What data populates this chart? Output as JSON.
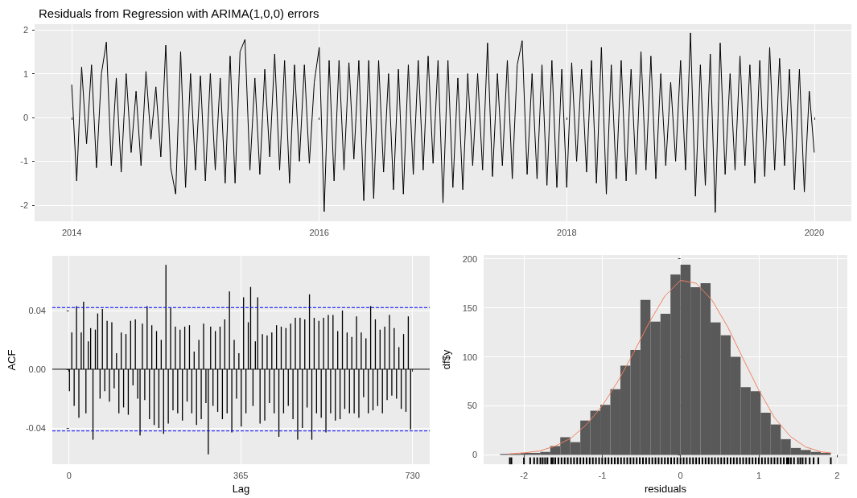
{
  "chart_data": [
    {
      "type": "line",
      "title": "Residuals from Regression with ARIMA(1,0,0) errors",
      "color": "#000000",
      "line_style": "solid",
      "grid": true,
      "x": [
        2014,
        2014.04,
        2014.08,
        2014.12,
        2014.16,
        2014.2,
        2014.24,
        2014.28,
        2014.32,
        2014.36,
        2014.4,
        2014.44,
        2014.48,
        2014.52,
        2014.56,
        2014.6,
        2014.64,
        2014.68,
        2014.72,
        2014.76,
        2014.8,
        2014.84,
        2014.88,
        2014.92,
        2014.96,
        2015,
        2015.04,
        2015.08,
        2015.12,
        2015.16,
        2015.2,
        2015.24,
        2015.28,
        2015.32,
        2015.36,
        2015.4,
        2015.44,
        2015.48,
        2015.52,
        2015.56,
        2015.6,
        2015.64,
        2015.68,
        2015.72,
        2015.76,
        2015.8,
        2015.84,
        2015.88,
        2015.92,
        2015.96,
        2016,
        2016.04,
        2016.08,
        2016.12,
        2016.16,
        2016.2,
        2016.24,
        2016.28,
        2016.32,
        2016.36,
        2016.4,
        2016.44,
        2016.48,
        2016.52,
        2016.56,
        2016.6,
        2016.64,
        2016.68,
        2016.72,
        2016.76,
        2016.8,
        2016.84,
        2016.88,
        2016.92,
        2016.96,
        2017,
        2017.04,
        2017.08,
        2017.12,
        2017.16,
        2017.2,
        2017.24,
        2017.28,
        2017.32,
        2017.36,
        2017.4,
        2017.44,
        2017.48,
        2017.52,
        2017.56,
        2017.6,
        2017.64,
        2017.68,
        2017.72,
        2017.76,
        2017.8,
        2017.84,
        2017.88,
        2017.92,
        2017.96,
        2018,
        2018.04,
        2018.08,
        2018.12,
        2018.16,
        2018.2,
        2018.24,
        2018.28,
        2018.32,
        2018.36,
        2018.4,
        2018.44,
        2018.48,
        2018.52,
        2018.56,
        2018.6,
        2018.64,
        2018.68,
        2018.72,
        2018.76,
        2018.8,
        2018.84,
        2018.88,
        2018.92,
        2018.96,
        2019,
        2019.04,
        2019.08,
        2019.12,
        2019.16,
        2019.2,
        2019.24,
        2019.28,
        2019.32,
        2019.36,
        2019.4,
        2019.44,
        2019.48,
        2019.52,
        2019.56,
        2019.6,
        2019.64,
        2019.68,
        2019.72,
        2019.76,
        2019.8,
        2019.84,
        2019.88,
        2019.92,
        2019.96,
        2020
      ],
      "values": [
        0.75,
        -1.45,
        1.15,
        -0.6,
        1.2,
        -1.15,
        1.0,
        1.72,
        -1.1,
        0.9,
        -1.25,
        1.0,
        -0.8,
        0.6,
        -1.1,
        1.05,
        -0.5,
        0.7,
        -0.9,
        1.65,
        -1.15,
        -1.75,
        1.5,
        -1.6,
        1.0,
        -1.2,
        0.95,
        -1.45,
        1.0,
        -1.2,
        0.9,
        -1.5,
        1.4,
        -1.5,
        1.5,
        1.78,
        -1.2,
        0.9,
        -1.3,
        1.1,
        -0.9,
        1.45,
        -1.2,
        1.3,
        -1.5,
        1.2,
        -1.0,
        1.2,
        -1.05,
        0.8,
        1.6,
        -2.15,
        1.3,
        -1.45,
        1.3,
        -1.2,
        1.25,
        -0.95,
        1.3,
        -1.9,
        1.3,
        -1.85,
        1.3,
        -1.25,
        1.0,
        -1.65,
        1.1,
        -1.75,
        1.2,
        -1.3,
        1.3,
        -1.2,
        1.4,
        -1.05,
        1.3,
        -1.95,
        1.3,
        -1.6,
        0.9,
        -1.65,
        1.0,
        -1.1,
        1.0,
        -1.2,
        1.7,
        -1.35,
        1.0,
        -1.1,
        1.3,
        -1.4,
        1.2,
        1.75,
        -1.3,
        1.0,
        -1.4,
        1.2,
        -1.55,
        1.3,
        -1.6,
        1.1,
        -1.6,
        1.25,
        -1.0,
        1.1,
        -1.25,
        1.3,
        -1.5,
        1.6,
        -1.75,
        1.2,
        -1.4,
        1.3,
        -1.45,
        1.1,
        -1.3,
        1.5,
        -1.2,
        1.4,
        -1.4,
        1.0,
        -1.1,
        0.8,
        -1.0,
        1.3,
        -1.2,
        1.93,
        -1.8,
        1.2,
        -1.55,
        1.45,
        -2.17,
        1.7,
        -1.3,
        1.0,
        -1.2,
        1.4,
        -1.1,
        1.2,
        -1.5,
        1.3,
        -1.35,
        1.6,
        -1.2,
        1.35,
        -1.1,
        1.1,
        -1.65,
        1.1,
        -1.7,
        0.6,
        -0.8
      ],
      "xlim": [
        2013.7,
        2020.3
      ],
      "xticks": [
        2014,
        2016,
        2018,
        2020
      ],
      "ylim": [
        -2.37,
        2.13
      ],
      "yticks": [
        -2,
        -1,
        0,
        1,
        2
      ]
    },
    {
      "type": "bar",
      "xlabel": "Lag",
      "ylabel": "ACF",
      "color": "#000000",
      "grid": true,
      "x": [
        1,
        6,
        11,
        16,
        21,
        26,
        31,
        36,
        41,
        46,
        51,
        56,
        61,
        66,
        71,
        76,
        81,
        86,
        91,
        96,
        101,
        106,
        111,
        116,
        121,
        126,
        131,
        136,
        141,
        146,
        151,
        156,
        161,
        166,
        171,
        176,
        181,
        186,
        191,
        196,
        201,
        206,
        211,
        216,
        221,
        226,
        231,
        236,
        241,
        246,
        251,
        256,
        261,
        266,
        271,
        276,
        281,
        286,
        291,
        296,
        301,
        306,
        311,
        316,
        321,
        326,
        331,
        336,
        341,
        346,
        351,
        356,
        361,
        366,
        371,
        376,
        381,
        386,
        391,
        396,
        401,
        406,
        411,
        416,
        421,
        426,
        431,
        436,
        441,
        446,
        451,
        456,
        461,
        466,
        471,
        476,
        481,
        486,
        491,
        496,
        501,
        506,
        511,
        516,
        521,
        526,
        531,
        536,
        541,
        546,
        551,
        556,
        561,
        566,
        571,
        576,
        581,
        586,
        591,
        596,
        601,
        606,
        611,
        616,
        621,
        626,
        631,
        636,
        641,
        646,
        651,
        656,
        661,
        666,
        671,
        676,
        681,
        686,
        691,
        696,
        701,
        706,
        711,
        716,
        721,
        726
      ],
      "values": [
        -0.015,
        0.025,
        -0.025,
        0.043,
        -0.033,
        0.025,
        0.046,
        -0.03,
        0.019,
        0.028,
        -0.048,
        0.027,
        0.038,
        -0.02,
        0.041,
        -0.015,
        0.033,
        -0.022,
        0.032,
        -0.013,
        0.011,
        -0.03,
        0.025,
        -0.026,
        0.024,
        -0.031,
        0.033,
        -0.011,
        0.034,
        -0.02,
        -0.045,
        0.031,
        -0.021,
        0.043,
        -0.034,
        0.03,
        -0.038,
        0.026,
        -0.04,
        0.02,
        -0.044,
        0.071,
        -0.037,
        0.042,
        -0.028,
        0.029,
        -0.03,
        0.027,
        -0.035,
        0.029,
        -0.022,
        0.03,
        -0.03,
        0.012,
        -0.038,
        0.02,
        -0.034,
        0.031,
        -0.023,
        -0.058,
        0.029,
        -0.025,
        0.026,
        -0.029,
        0.029,
        -0.034,
        0.034,
        -0.03,
        0.053,
        -0.043,
        0.02,
        -0.02,
        0.011,
        -0.039,
        0.049,
        -0.03,
        0.032,
        0.056,
        -0.025,
        0.019,
        0.049,
        -0.037,
        0.024,
        -0.035,
        0.023,
        -0.023,
        0.025,
        -0.03,
        0.03,
        -0.046,
        0.029,
        -0.03,
        0.028,
        -0.025,
        0.031,
        -0.034,
        0.035,
        -0.048,
        0.035,
        -0.04,
        0.034,
        -0.026,
        0.051,
        -0.048,
        0.035,
        -0.03,
        0.033,
        -0.033,
        0.035,
        -0.043,
        0.037,
        -0.03,
        0.037,
        -0.035,
        0.026,
        -0.034,
        0.04,
        -0.027,
        0.025,
        -0.03,
        0.022,
        -0.03,
        0.036,
        -0.033,
        0.025,
        -0.019,
        0.021,
        -0.03,
        0.043,
        -0.028,
        0.034,
        -0.025,
        0.027,
        -0.03,
        0.029,
        -0.021,
        0.037,
        -0.018,
        0.028,
        -0.02,
        0.015,
        -0.027,
        0.024,
        -0.029,
        0.036,
        -0.041
      ],
      "xlim": [
        -35.5,
        766.5
      ],
      "xticks": [
        0,
        365,
        730
      ],
      "ylim": [
        -0.0647,
        0.0772
      ],
      "yticks": [
        {
          "value": -0.04,
          "label": "-0.04"
        },
        {
          "value": 0,
          "label": "0.00"
        },
        {
          "value": 0.04,
          "label": "0.04"
        }
      ],
      "ref_lines": [
        {
          "axis": "y",
          "value": 0.042,
          "color": "#0000ff",
          "line_style": "dashed"
        },
        {
          "axis": "y",
          "value": -0.042,
          "color": "#0000ff",
          "line_style": "dashed"
        },
        {
          "axis": "y",
          "value": 0,
          "color": "#000000",
          "line_style": "solid"
        }
      ]
    },
    {
      "type": "histogram",
      "xlabel": "residuals",
      "ylabel": "df$y",
      "color": "#595959",
      "grid": true,
      "bins": [
        -2.304,
        -2.176,
        -2.048,
        -1.92,
        -1.792,
        -1.664,
        -1.536,
        -1.408,
        -1.28,
        -1.152,
        -1.024,
        -0.896,
        -0.768,
        -0.64,
        -0.512,
        -0.384,
        -0.256,
        -0.128,
        0,
        0.128,
        0.256,
        0.384,
        0.512,
        0.64,
        0.768,
        0.896,
        1.024,
        1.152,
        1.28,
        1.408,
        1.536,
        1.664,
        1.792,
        1.92
      ],
      "values": [
        1,
        1,
        2,
        2,
        3,
        9,
        18,
        13,
        35,
        45,
        51,
        67,
        91,
        107,
        158,
        136,
        144,
        184,
        194,
        171,
        175,
        135,
        122,
        100,
        69,
        65,
        43,
        31,
        16,
        7,
        5,
        3,
        2
      ],
      "series": [
        {
          "type": "line",
          "color": "#f08060",
          "x": [
            -2.2,
            -2,
            -1.8,
            -1.6,
            -1.4,
            -1.2,
            -1,
            -0.8,
            -0.6,
            -0.4,
            -0.2,
            0,
            0.2,
            0.4,
            0.6,
            0.8,
            1,
            1.2,
            1.4,
            1.6,
            1.8,
            1.92
          ],
          "values": [
            1,
            2,
            4,
            9,
            17,
            31,
            50,
            75,
            104,
            135,
            162,
            178,
            175,
            158,
            131,
            98,
            66,
            38,
            19,
            8,
            3,
            2
          ]
        },
        {
          "type": "bar",
          "color": "#000000",
          "base": [
            -9.6,
            -9.6,
            -9.6,
            -9.6,
            -9.6,
            -9.6,
            -9.6,
            -9.6,
            -9.6,
            -9.6,
            -9.6,
            -9.6,
            -9.6,
            -9.6,
            -9.6,
            -9.6,
            -9.6,
            -9.6,
            -9.6,
            -9.6,
            -9.6,
            -9.6,
            -9.6,
            -9.6,
            -9.6,
            -9.6,
            -9.6,
            -9.6,
            -9.6,
            -9.6,
            -9.6,
            -9.6,
            -9.6,
            -9.6,
            -9.6,
            -9.6,
            -9.6,
            -9.6,
            -9.6,
            -9.6,
            -9.6,
            -9.6,
            -9.6,
            -9.6,
            -9.6,
            -9.6,
            -9.6,
            -9.6,
            -9.6,
            -9.6,
            -9.6,
            -9.6,
            -9.6,
            -9.6,
            -9.6,
            -9.6,
            -9.6,
            -9.6,
            -9.6,
            -9.6,
            -9.6,
            -9.6,
            -9.6,
            -9.6,
            -9.6,
            -9.6,
            -9.6,
            -9.6,
            -9.6,
            -9.6,
            -9.6,
            -9.6,
            -9.6,
            -9.6,
            -9.6,
            -9.6,
            -9.6,
            -9.6,
            -9.6,
            -9.6,
            -9.6,
            -9.6,
            -9.6,
            -9.6,
            -9.6,
            -9.6,
            -9.6,
            -9.6,
            -9.6,
            -9.6,
            -9.6,
            -9.6,
            -9.6,
            -9.6,
            -9.6,
            -9.6,
            -9.6,
            -9.6
          ],
          "x": [
            -2.18,
            -2.16,
            -2,
            -1.92,
            -1.87,
            -1.83,
            -1.79,
            -1.76,
            -1.73,
            -1.7,
            -1.65,
            -1.63,
            -1.6,
            -1.56,
            -1.52,
            -1.48,
            -1.44,
            -1.4,
            -1.36,
            -1.32,
            -1.28,
            -1.24,
            -1.2,
            -1.16,
            -1.12,
            -1.08,
            -1.04,
            -1,
            -0.96,
            -0.92,
            -0.88,
            -0.84,
            -0.8,
            -0.76,
            -0.72,
            -0.68,
            -0.64,
            -0.6,
            -0.56,
            -0.52,
            -0.48,
            -0.44,
            -0.4,
            -0.36,
            -0.32,
            -0.28,
            -0.24,
            -0.2,
            -0.16,
            -0.12,
            -0.08,
            -0.04,
            0,
            0.04,
            0.08,
            0.12,
            0.16,
            0.2,
            0.24,
            0.28,
            0.32,
            0.36,
            0.4,
            0.44,
            0.48,
            0.52,
            0.56,
            0.6,
            0.64,
            0.68,
            0.72,
            0.76,
            0.8,
            0.84,
            0.88,
            0.92,
            0.96,
            1,
            1.04,
            1.08,
            1.12,
            1.16,
            1.2,
            1.24,
            1.28,
            1.32,
            1.36,
            1.38,
            1.41,
            1.45,
            1.5,
            1.53,
            1.56,
            1.6,
            1.65,
            1.7,
            1.76,
            1.92
          ],
          "values": [
            7,
            7,
            7,
            7,
            7,
            7,
            7,
            7,
            7,
            7,
            7,
            7,
            7,
            7,
            7,
            7,
            7,
            7,
            7,
            7,
            7,
            7,
            7,
            7,
            7,
            7,
            7,
            7,
            7,
            7,
            7,
            7,
            7,
            7,
            7,
            7,
            7,
            7,
            7,
            7,
            7,
            7,
            7,
            7,
            7,
            7,
            7,
            7,
            7,
            7,
            7,
            7,
            7,
            7,
            7,
            7,
            7,
            7,
            7,
            7,
            7,
            7,
            7,
            7,
            7,
            7,
            7,
            7,
            7,
            7,
            7,
            7,
            7,
            7,
            7,
            7,
            7,
            7,
            7,
            7,
            7,
            7,
            7,
            7,
            7,
            7,
            7,
            7,
            7,
            7,
            7,
            7,
            7,
            7,
            7,
            7,
            7,
            7
          ]
        }
      ],
      "xlim": [
        -2.515,
        2.131
      ],
      "xticks": [
        -2,
        -1,
        0,
        1,
        2
      ],
      "ylim": [
        -9.6,
        203.8
      ],
      "yticks": [
        0,
        50,
        100,
        150,
        200
      ]
    }
  ]
}
